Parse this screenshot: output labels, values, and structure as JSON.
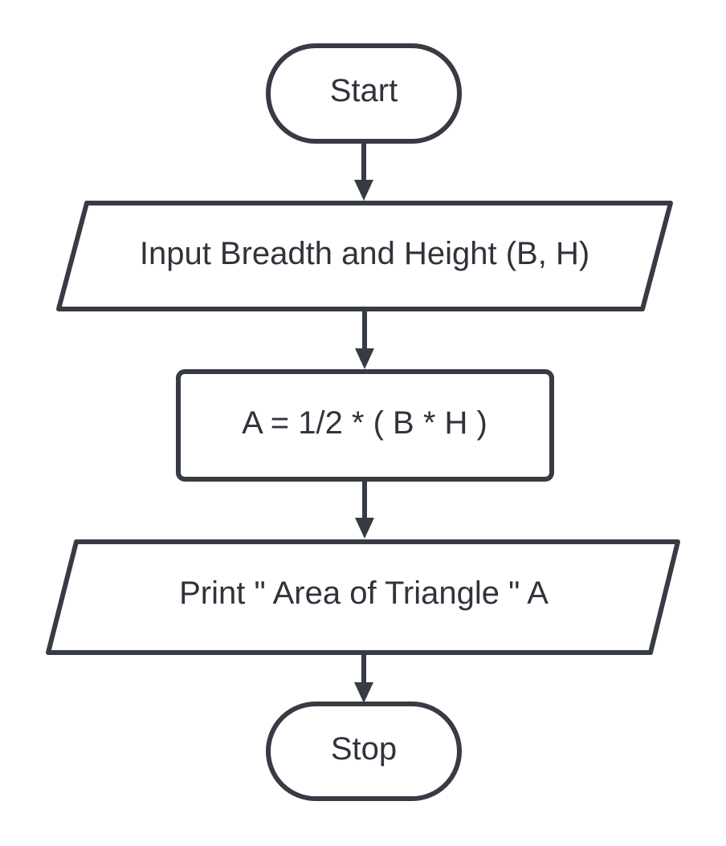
{
  "flowchart": {
    "colors": {
      "stroke": "#363b44",
      "text": "#2f333b",
      "background": "#ffffff"
    },
    "nodes": [
      {
        "id": "start",
        "type": "terminator",
        "label": "Start"
      },
      {
        "id": "input",
        "type": "input-output",
        "label": "Input Breadth and Height (B, H)"
      },
      {
        "id": "process",
        "type": "process",
        "label": "A = 1/2 * ( B * H )"
      },
      {
        "id": "output",
        "type": "input-output",
        "label": "Print \" Area of Triangle \" A"
      },
      {
        "id": "stop",
        "type": "terminator",
        "label": "Stop"
      }
    ],
    "edges": [
      {
        "from": "start",
        "to": "input"
      },
      {
        "from": "input",
        "to": "process"
      },
      {
        "from": "process",
        "to": "output"
      },
      {
        "from": "output",
        "to": "stop"
      }
    ]
  }
}
